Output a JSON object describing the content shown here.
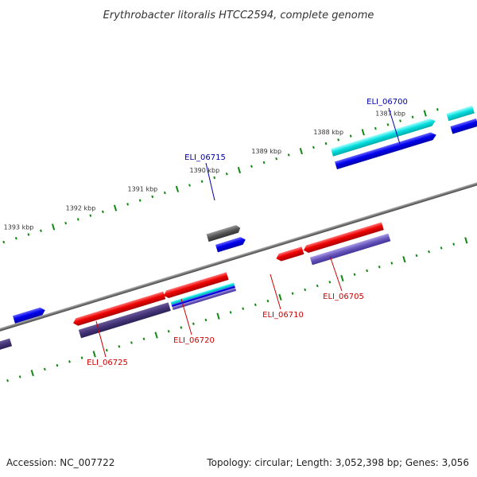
{
  "title": "Erythrobacter litoralis HTCC2594, complete genome",
  "footer": {
    "accession": "Accession: NC_007722",
    "stats": "Topology: circular; Length: 3,052,398 bp; Genes: 3,056"
  },
  "ticks": [
    {
      "label": "1387 kbp"
    },
    {
      "label": "1388 kbp"
    },
    {
      "label": "1389 kbp"
    },
    {
      "label": "1390 kbp"
    },
    {
      "label": "1391 kbp"
    },
    {
      "label": "1392 kbp"
    },
    {
      "label": "1393 kbp"
    }
  ],
  "genes": [
    {
      "id": "ELI_06700",
      "strand": "plus",
      "color": "#0000aa"
    },
    {
      "id": "ELI_06705",
      "strand": "minus",
      "color": "#cc0000"
    },
    {
      "id": "ELI_06710",
      "strand": "minus",
      "color": "#cc0000"
    },
    {
      "id": "ELI_06715",
      "strand": "plus",
      "color": "#0000aa"
    },
    {
      "id": "ELI_06720",
      "strand": "minus",
      "color": "#cc0000"
    },
    {
      "id": "ELI_06725",
      "strand": "minus",
      "color": "#cc0000"
    }
  ],
  "colors": {
    "cds_plus": "#0000ee",
    "cds_minus": "#ee0000",
    "rna_plus": "#00dddd",
    "pseudo": "#555555",
    "ortholog_minus": "#443377",
    "backbone": "#777777",
    "tick": "#118811"
  }
}
